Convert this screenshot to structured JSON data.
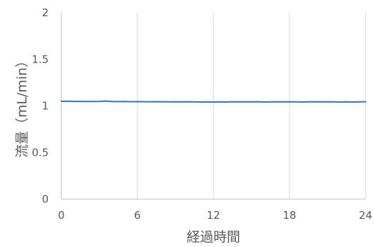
{
  "chart_data": {
    "type": "line",
    "title": "",
    "xlabel": "経過時間",
    "ylabel": "流量（mL/min）",
    "xlim": [
      0,
      24
    ],
    "ylim": [
      0,
      2
    ],
    "xticks": [
      0,
      6,
      12,
      18,
      24
    ],
    "yticks": [
      0,
      0.5,
      1,
      1.5,
      2
    ],
    "xtick_labels": [
      "0",
      "6",
      "12",
      "18",
      "24"
    ],
    "ytick_labels": [
      "0",
      "0.5",
      "1",
      "1.5",
      "2"
    ],
    "grid": "vertical",
    "legend": "none",
    "series": [
      {
        "color": "#2E75B6",
        "x": [
          0,
          0.5,
          1,
          1.5,
          2,
          2.5,
          3,
          3.5,
          4,
          4.5,
          5,
          5.5,
          6,
          6.5,
          7,
          7.5,
          8,
          8.5,
          9,
          9.5,
          10,
          10.5,
          11,
          11.5,
          12,
          12.5,
          13,
          13.5,
          14,
          14.5,
          15,
          15.5,
          16,
          16.5,
          17,
          17.5,
          18,
          18.5,
          19,
          19.5,
          20,
          20.5,
          21,
          21.5,
          22,
          22.5,
          23,
          23.5,
          24
        ],
        "y": [
          1.05,
          1.05,
          1.048,
          1.048,
          1.047,
          1.047,
          1.048,
          1.052,
          1.047,
          1.046,
          1.047,
          1.045,
          1.046,
          1.045,
          1.044,
          1.045,
          1.044,
          1.043,
          1.044,
          1.043,
          1.044,
          1.043,
          1.042,
          1.043,
          1.042,
          1.043,
          1.042,
          1.044,
          1.043,
          1.044,
          1.043,
          1.044,
          1.042,
          1.043,
          1.044,
          1.043,
          1.044,
          1.043,
          1.042,
          1.043,
          1.044,
          1.043,
          1.044,
          1.043,
          1.042,
          1.043,
          1.042,
          1.043,
          1.044
        ]
      }
    ]
  }
}
